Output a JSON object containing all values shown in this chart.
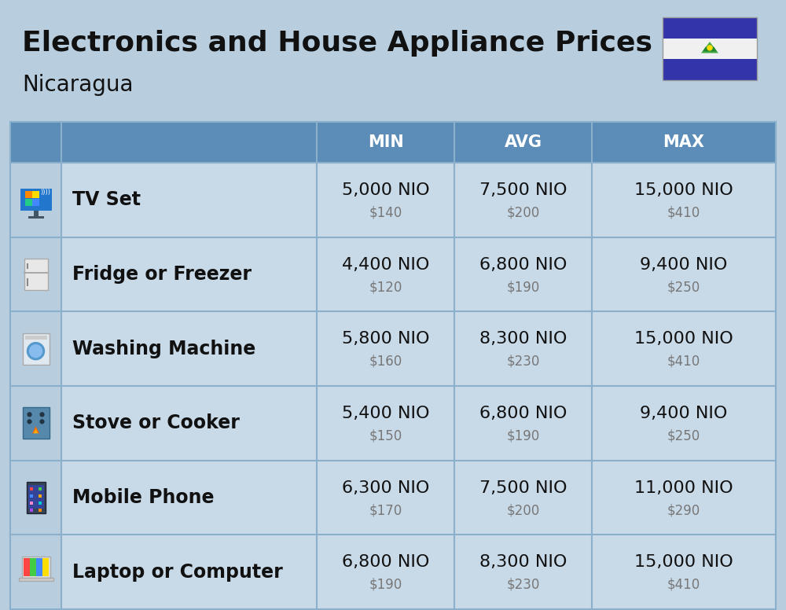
{
  "title_line1": "Electronics and House Appliance Prices",
  "subtitle": "Nicaragua",
  "background_color": "#b8cedf",
  "header_bg_color": "#5b8db8",
  "header_text_color": "#ffffff",
  "row_bg_color": "#c8d9e8",
  "divider_color": "#8ab0cc",
  "columns": [
    "MIN",
    "AVG",
    "MAX"
  ],
  "rows": [
    {
      "name": "TV Set",
      "min_nio": "5,000 NIO",
      "min_usd": "$140",
      "avg_nio": "7,500 NIO",
      "avg_usd": "$200",
      "max_nio": "15,000 NIO",
      "max_usd": "$410"
    },
    {
      "name": "Fridge or Freezer",
      "min_nio": "4,400 NIO",
      "min_usd": "$120",
      "avg_nio": "6,800 NIO",
      "avg_usd": "$190",
      "max_nio": "9,400 NIO",
      "max_usd": "$250"
    },
    {
      "name": "Washing Machine",
      "min_nio": "5,800 NIO",
      "min_usd": "$160",
      "avg_nio": "8,300 NIO",
      "avg_usd": "$230",
      "max_nio": "15,000 NIO",
      "max_usd": "$410"
    },
    {
      "name": "Stove or Cooker",
      "min_nio": "5,400 NIO",
      "min_usd": "$150",
      "avg_nio": "6,800 NIO",
      "avg_usd": "$190",
      "max_nio": "9,400 NIO",
      "max_usd": "$250"
    },
    {
      "name": "Mobile Phone",
      "min_nio": "6,300 NIO",
      "min_usd": "$170",
      "avg_nio": "7,500 NIO",
      "avg_usd": "$200",
      "max_nio": "11,000 NIO",
      "max_usd": "$290"
    },
    {
      "name": "Laptop or Computer",
      "min_nio": "6,800 NIO",
      "min_usd": "$190",
      "avg_nio": "8,300 NIO",
      "avg_usd": "$230",
      "max_nio": "15,000 NIO",
      "max_usd": "$410"
    }
  ],
  "title_fontsize": 26,
  "subtitle_fontsize": 20,
  "header_fontsize": 15,
  "data_fontsize": 16,
  "usd_fontsize": 12,
  "item_fontsize": 17,
  "flag_blue": "#3333aa",
  "flag_white": "#f0f0f0"
}
